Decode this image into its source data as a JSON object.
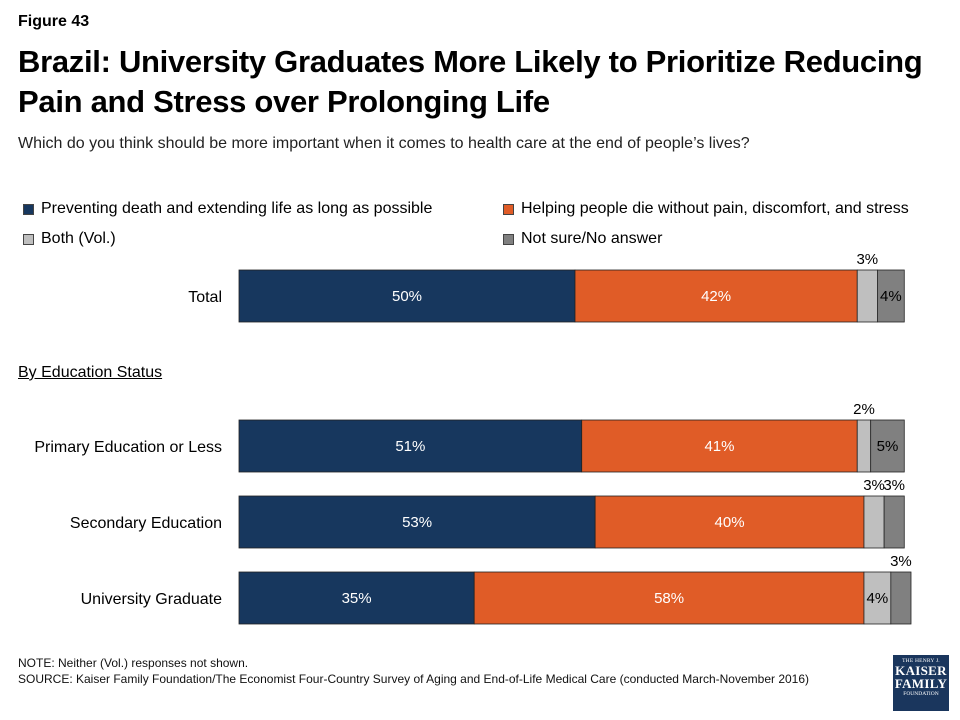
{
  "figure_label": "Figure 43",
  "title": "Brazil: University Graduates More Likely to Prioritize Reducing Pain and Stress over Prolonging Life",
  "subtitle": "Which do you think should be more important when it comes to health care at the end of people’s lives?",
  "section_label": "By Education Status",
  "note_line1": "NOTE: Neither (Vol.) responses not shown.",
  "note_line2": "SOURCE: Kaiser Family Foundation/The Economist Four-Country Survey of Aging and End-of-Life Medical Care (conducted March-November 2016)",
  "logo": {
    "line1": "THE HENRY J.",
    "line2": "KAISER",
    "line3": "FAMILY",
    "line4": "FOUNDATION"
  },
  "chart_data": {
    "type": "bar",
    "orientation": "horizontal",
    "stacked": true,
    "legend_placement": "top",
    "categories": [
      "Total",
      "Primary Education or Less",
      "Secondary Education",
      "University Graduate"
    ],
    "series": [
      {
        "name": "Preventing death and extending life as long as possible",
        "color": "#17375e",
        "values": [
          50,
          51,
          53,
          35
        ]
      },
      {
        "name": "Helping people die without pain, discomfort, and stress",
        "color": "#e05c27",
        "values": [
          42,
          41,
          40,
          58
        ]
      },
      {
        "name": "Both (Vol.)",
        "color": "#bfbfbf",
        "values": [
          3,
          2,
          3,
          4
        ]
      },
      {
        "name": "Not sure/No answer",
        "color": "#808080",
        "values": [
          4,
          5,
          3,
          3
        ]
      }
    ],
    "data_labels": [
      [
        "50%",
        "42%",
        "3%",
        "4%"
      ],
      [
        "51%",
        "41%",
        "2%",
        "5%"
      ],
      [
        "53%",
        "40%",
        "3%",
        "3%"
      ],
      [
        "35%",
        "58%",
        "4%",
        "3%"
      ]
    ],
    "xlim": [
      0,
      100
    ],
    "grid": false
  }
}
